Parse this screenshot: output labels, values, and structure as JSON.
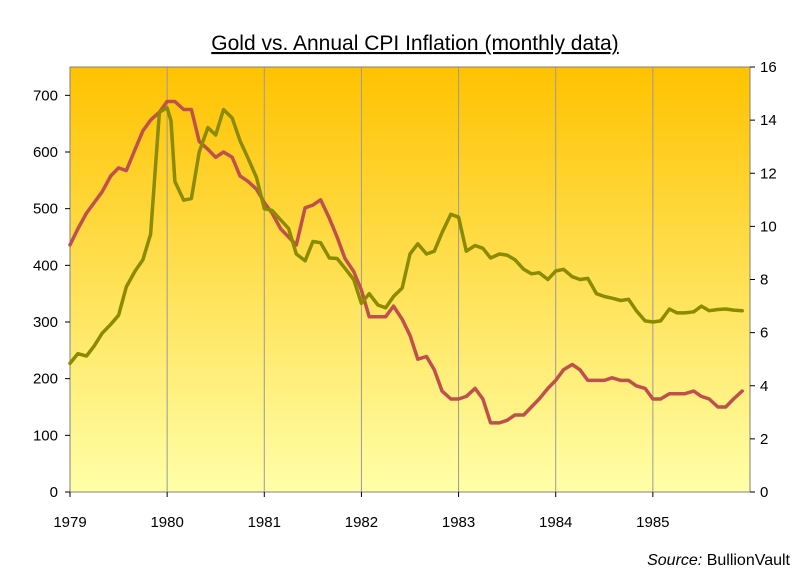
{
  "chart_data": {
    "type": "line",
    "title": "Gold vs. Annual CPI Inflation (monthly data)",
    "source_label": "Source:",
    "source_value": "BullionVault",
    "x_ticks": [
      "1979",
      "1980",
      "1981",
      "1982",
      "1983",
      "1984",
      "1985"
    ],
    "y_left_ticks": [
      "0",
      "100",
      "200",
      "300",
      "400",
      "500",
      "600",
      "700"
    ],
    "y_right_ticks": [
      "0",
      "2",
      "4",
      "6",
      "8",
      "10",
      "12",
      "14",
      "16"
    ],
    "xlim": [
      1979.0,
      1986.0
    ],
    "ylim_left": [
      0,
      750
    ],
    "ylim_right": [
      0,
      16
    ],
    "grid": true,
    "colors": {
      "gold": "#8b8b00",
      "cpi": "#c0504d",
      "bg_top": "#ffc200",
      "bg_bottom": "#ffffa8"
    },
    "series": [
      {
        "axis": "left",
        "x": [
          1979.0,
          1979.08,
          1979.17,
          1979.25,
          1979.33,
          1979.42,
          1979.5,
          1979.58,
          1979.67,
          1979.75,
          1979.83,
          1979.92,
          1980.0,
          1980.04,
          1980.08,
          1980.17,
          1980.25,
          1980.33,
          1980.42,
          1980.5,
          1980.58,
          1980.67,
          1980.75,
          1980.83,
          1980.92,
          1981.0,
          1981.08,
          1981.17,
          1981.25,
          1981.33,
          1981.42,
          1981.5,
          1981.58,
          1981.67,
          1981.75,
          1981.83,
          1981.92,
          1982.0,
          1982.08,
          1982.17,
          1982.25,
          1982.33,
          1982.42,
          1982.5,
          1982.58,
          1982.67,
          1982.75,
          1982.83,
          1982.92,
          1983.0,
          1983.08,
          1983.17,
          1983.25,
          1983.33,
          1983.42,
          1983.5,
          1983.58,
          1983.67,
          1983.75,
          1983.83,
          1983.92,
          1984.0,
          1984.08,
          1984.17,
          1984.25,
          1984.33,
          1984.42,
          1984.5,
          1984.58,
          1984.67,
          1984.75,
          1984.83,
          1984.92,
          1985.0,
          1985.08,
          1985.17,
          1985.25,
          1985.33,
          1985.42,
          1985.5,
          1985.58,
          1985.67,
          1985.75,
          1985.83,
          1985.92
        ],
        "values": [
          227,
          244,
          240,
          258,
          280,
          296,
          312,
          362,
          390,
          410,
          455,
          670,
          678,
          655,
          548,
          515,
          518,
          600,
          643,
          630,
          675,
          660,
          620,
          590,
          555,
          500,
          497,
          480,
          465,
          420,
          408,
          442,
          440,
          413,
          412,
          395,
          375,
          333,
          350,
          330,
          325,
          345,
          360,
          420,
          438,
          420,
          425,
          458,
          490,
          485,
          425,
          435,
          430,
          413,
          420,
          418,
          410,
          393,
          385,
          387,
          375,
          390,
          393,
          380,
          375,
          377,
          350,
          345,
          342,
          338,
          340,
          320,
          302,
          300,
          302,
          323,
          316,
          316,
          318,
          328,
          320,
          322,
          323,
          321,
          320
        ]
      },
      {
        "axis": "right",
        "x": [
          1979.0,
          1979.08,
          1979.17,
          1979.25,
          1979.33,
          1979.42,
          1979.5,
          1979.58,
          1979.67,
          1979.75,
          1979.83,
          1979.92,
          1980.0,
          1980.08,
          1980.17,
          1980.25,
          1980.33,
          1980.42,
          1980.5,
          1980.58,
          1980.67,
          1980.75,
          1980.83,
          1980.92,
          1981.0,
          1981.08,
          1981.17,
          1981.25,
          1981.33,
          1981.42,
          1981.5,
          1981.58,
          1981.67,
          1981.75,
          1981.83,
          1981.92,
          1982.0,
          1982.08,
          1982.17,
          1982.25,
          1982.33,
          1982.42,
          1982.5,
          1982.58,
          1982.67,
          1982.75,
          1982.83,
          1982.92,
          1983.0,
          1983.08,
          1983.17,
          1983.25,
          1983.33,
          1983.42,
          1983.5,
          1983.58,
          1983.67,
          1983.75,
          1983.83,
          1983.92,
          1984.0,
          1984.08,
          1984.17,
          1984.25,
          1984.33,
          1984.42,
          1984.5,
          1984.58,
          1984.67,
          1984.75,
          1984.83,
          1984.92,
          1985.0,
          1985.08,
          1985.17,
          1985.25,
          1985.33,
          1985.42,
          1985.5,
          1985.58,
          1985.67,
          1985.75,
          1985.83,
          1985.92
        ],
        "values": [
          9.3,
          9.9,
          10.5,
          10.9,
          11.3,
          11.9,
          12.2,
          12.1,
          12.9,
          13.6,
          14.0,
          14.3,
          14.7,
          14.7,
          14.4,
          14.4,
          13.2,
          12.9,
          12.6,
          12.8,
          12.6,
          11.9,
          11.7,
          11.4,
          10.9,
          10.5,
          9.9,
          9.6,
          9.3,
          10.7,
          10.8,
          11.0,
          10.3,
          9.6,
          8.8,
          8.3,
          7.6,
          6.6,
          6.6,
          6.6,
          7.0,
          6.5,
          5.9,
          5.0,
          5.1,
          4.6,
          3.8,
          3.5,
          3.5,
          3.6,
          3.9,
          3.5,
          2.6,
          2.6,
          2.7,
          2.9,
          2.9,
          3.2,
          3.5,
          3.9,
          4.2,
          4.6,
          4.8,
          4.6,
          4.2,
          4.2,
          4.2,
          4.3,
          4.2,
          4.2,
          4.0,
          3.9,
          3.5,
          3.5,
          3.7,
          3.7,
          3.7,
          3.8,
          3.6,
          3.5,
          3.2,
          3.2,
          3.5,
          3.8
        ]
      }
    ]
  }
}
